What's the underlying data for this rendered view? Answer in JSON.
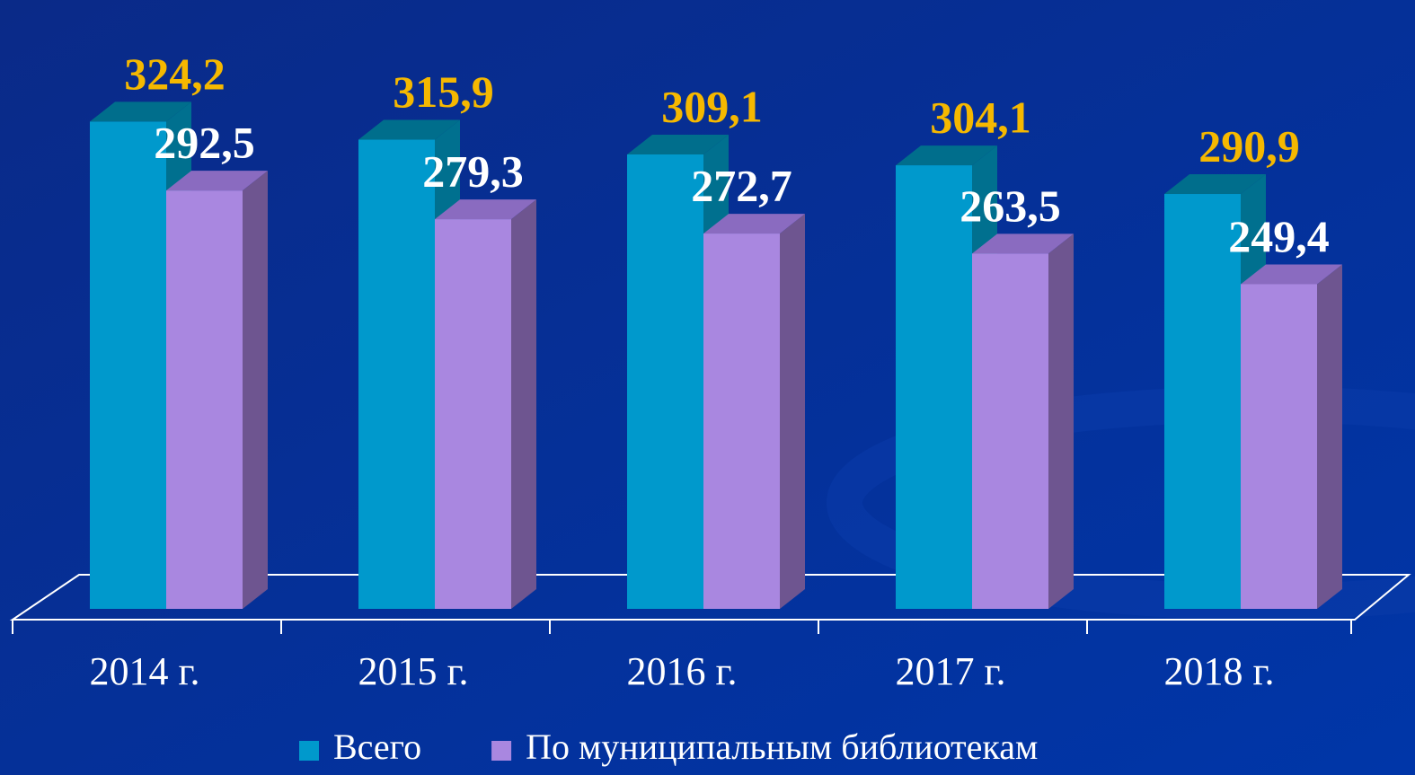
{
  "chart_data": {
    "type": "bar3d",
    "categories": [
      "2014 г.",
      "2015 г.",
      "2016 г.",
      "2017 г.",
      "2018 г."
    ],
    "series": [
      {
        "name": "Всего",
        "color": "#0099cc",
        "values": [
          324.2,
          315.9,
          309.1,
          304.1,
          290.9
        ],
        "value_labels": [
          "324,2",
          "315,9",
          "309,1",
          "304,1",
          "290,9"
        ]
      },
      {
        "name": "По муниципальным библиотекам",
        "color": "#a987e0",
        "values": [
          292.5,
          279.3,
          272.7,
          263.5,
          249.4
        ],
        "value_labels": [
          "292,5",
          "279,3",
          "272,7",
          "263,5",
          "249,4"
        ]
      }
    ],
    "ylim": [
      100,
      350
    ],
    "legend": "bottom"
  }
}
